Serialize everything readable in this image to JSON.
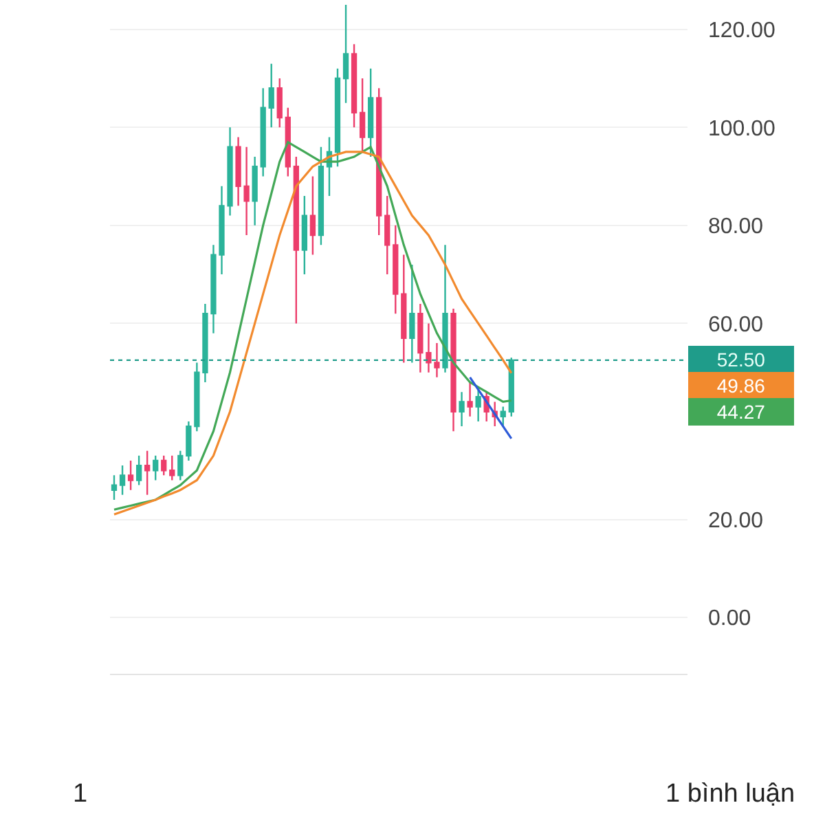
{
  "chart_data": {
    "type": "candlestick",
    "categories": [
      null,
      null,
      null,
      null,
      null,
      null,
      null,
      null,
      null,
      null,
      null,
      null,
      null,
      null,
      null,
      null,
      null,
      null,
      null,
      null,
      null,
      null,
      null,
      null,
      null,
      null,
      null,
      null,
      null,
      null,
      null,
      null,
      null,
      null,
      null,
      null,
      null,
      null,
      null,
      null,
      null,
      null,
      null,
      null,
      null,
      null,
      null,
      null,
      null
    ],
    "ohlc": [
      [
        26,
        29,
        24,
        27
      ],
      [
        27,
        31,
        25,
        29
      ],
      [
        29,
        32,
        26,
        28
      ],
      [
        28,
        33,
        27,
        31
      ],
      [
        31,
        34,
        25,
        30
      ],
      [
        30,
        33,
        28,
        32
      ],
      [
        32,
        33,
        29,
        30
      ],
      [
        30,
        33,
        28,
        29
      ],
      [
        29,
        34,
        28,
        33
      ],
      [
        33,
        40,
        32,
        39
      ],
      [
        39,
        52,
        38,
        50
      ],
      [
        50,
        64,
        48,
        62
      ],
      [
        62,
        76,
        58,
        74
      ],
      [
        74,
        88,
        70,
        84
      ],
      [
        84,
        100,
        82,
        96
      ],
      [
        96,
        98,
        84,
        88
      ],
      [
        88,
        96,
        78,
        85
      ],
      [
        85,
        94,
        80,
        92
      ],
      [
        92,
        108,
        90,
        104
      ],
      [
        104,
        113,
        100,
        108
      ],
      [
        108,
        110,
        100,
        102
      ],
      [
        102,
        104,
        90,
        92
      ],
      [
        92,
        94,
        60,
        75
      ],
      [
        75,
        86,
        70,
        82
      ],
      [
        82,
        90,
        74,
        78
      ],
      [
        78,
        96,
        76,
        92
      ],
      [
        92,
        98,
        86,
        95
      ],
      [
        95,
        112,
        92,
        110
      ],
      [
        110,
        125,
        105,
        115
      ],
      [
        115,
        117,
        100,
        103
      ],
      [
        103,
        110,
        95,
        98
      ],
      [
        98,
        112,
        94,
        106
      ],
      [
        106,
        108,
        78,
        82
      ],
      [
        82,
        86,
        70,
        76
      ],
      [
        76,
        80,
        62,
        66
      ],
      [
        66,
        74,
        52,
        57
      ],
      [
        57,
        72,
        52,
        62
      ],
      [
        62,
        64,
        50,
        54
      ],
      [
        54,
        60,
        50,
        52
      ],
      [
        52,
        56,
        49,
        51
      ],
      [
        51,
        76,
        50,
        62
      ],
      [
        62,
        63,
        38,
        42
      ],
      [
        42,
        46,
        39,
        44
      ],
      [
        44,
        48,
        41,
        43
      ],
      [
        43,
        47,
        40,
        45
      ],
      [
        45,
        46,
        40,
        42
      ],
      [
        42,
        44,
        39,
        41
      ],
      [
        41,
        43,
        39,
        42
      ],
      [
        42,
        53,
        41,
        52.5
      ]
    ],
    "colors": [
      "#2bb39a",
      "#2bb39a",
      "#ec3d6b",
      "#2bb39a",
      "#ec3d6b",
      "#2bb39a",
      "#ec3d6b",
      "#ec3d6b",
      "#2bb39a",
      "#2bb39a",
      "#2bb39a",
      "#2bb39a",
      "#2bb39a",
      "#2bb39a",
      "#2bb39a",
      "#ec3d6b",
      "#ec3d6b",
      "#2bb39a",
      "#2bb39a",
      "#2bb39a",
      "#ec3d6b",
      "#ec3d6b",
      "#ec3d6b",
      "#2bb39a",
      "#ec3d6b",
      "#2bb39a",
      "#2bb39a",
      "#2bb39a",
      "#2bb39a",
      "#ec3d6b",
      "#ec3d6b",
      "#2bb39a",
      "#ec3d6b",
      "#ec3d6b",
      "#ec3d6b",
      "#ec3d6b",
      "#2bb39a",
      "#ec3d6b",
      "#ec3d6b",
      "#ec3d6b",
      "#2bb39a",
      "#ec3d6b",
      "#2bb39a",
      "#ec3d6b",
      "#2bb39a",
      "#ec3d6b",
      "#ec3d6b",
      "#2bb39a",
      "#2bb39a"
    ],
    "series": [
      {
        "type": "line",
        "color": "#43a857",
        "values": [
          22,
          22.4,
          22.8,
          23.2,
          23.6,
          24,
          25,
          26,
          27,
          28.5,
          30,
          34,
          38,
          44,
          50,
          57.5,
          65,
          72.5,
          80,
          86.5,
          93,
          97,
          96,
          95,
          94,
          93,
          93,
          93,
          93.5,
          94,
          95,
          96,
          92,
          88,
          82,
          76,
          71,
          66,
          62,
          58,
          55,
          52,
          50,
          48,
          47,
          46,
          45,
          44,
          44.27
        ]
      },
      {
        "type": "line",
        "color": "#f28a2e",
        "values": [
          21,
          21.6,
          22.2,
          22.8,
          23.4,
          24,
          24.7,
          25.3,
          26,
          27,
          28,
          30.5,
          33,
          37.5,
          42,
          48,
          54,
          60,
          66,
          72,
          78,
          83,
          88,
          90,
          92,
          93,
          94,
          94.5,
          95,
          95,
          95,
          94.5,
          94,
          91,
          88,
          85,
          82,
          80,
          78,
          75,
          72,
          68.5,
          65,
          62.5,
          60,
          57.5,
          55,
          52.5,
          49.86
        ]
      },
      {
        "type": "line",
        "color": "#2d5bd8",
        "values": [
          null,
          null,
          null,
          null,
          null,
          null,
          null,
          null,
          null,
          null,
          null,
          null,
          null,
          null,
          null,
          null,
          null,
          null,
          null,
          null,
          null,
          null,
          null,
          null,
          null,
          null,
          null,
          null,
          null,
          null,
          null,
          null,
          null,
          null,
          null,
          null,
          null,
          null,
          null,
          null,
          null,
          null,
          null,
          49,
          46.5,
          44,
          41.5,
          39,
          36.5
        ]
      }
    ],
    "ref_lines": [
      {
        "axis": "y",
        "value": 52.5,
        "label": "52.50",
        "color": "#1f9c8a",
        "line_style": "dotted"
      }
    ],
    "annotations": [
      "49.86",
      "44.27",
      "1",
      "1 bình luận"
    ],
    "ylim": [
      -11.5,
      126
    ],
    "yticks": [
      {
        "value": 0,
        "label": "0.00"
      },
      {
        "value": 20,
        "label": "20.00"
      },
      {
        "value": 60,
        "label": "60.00"
      },
      {
        "value": 80,
        "label": "80.00"
      },
      {
        "value": 100,
        "label": "100.00"
      },
      {
        "value": 120,
        "label": "120.00"
      }
    ],
    "tick_labels": "y",
    "grid": "y"
  }
}
